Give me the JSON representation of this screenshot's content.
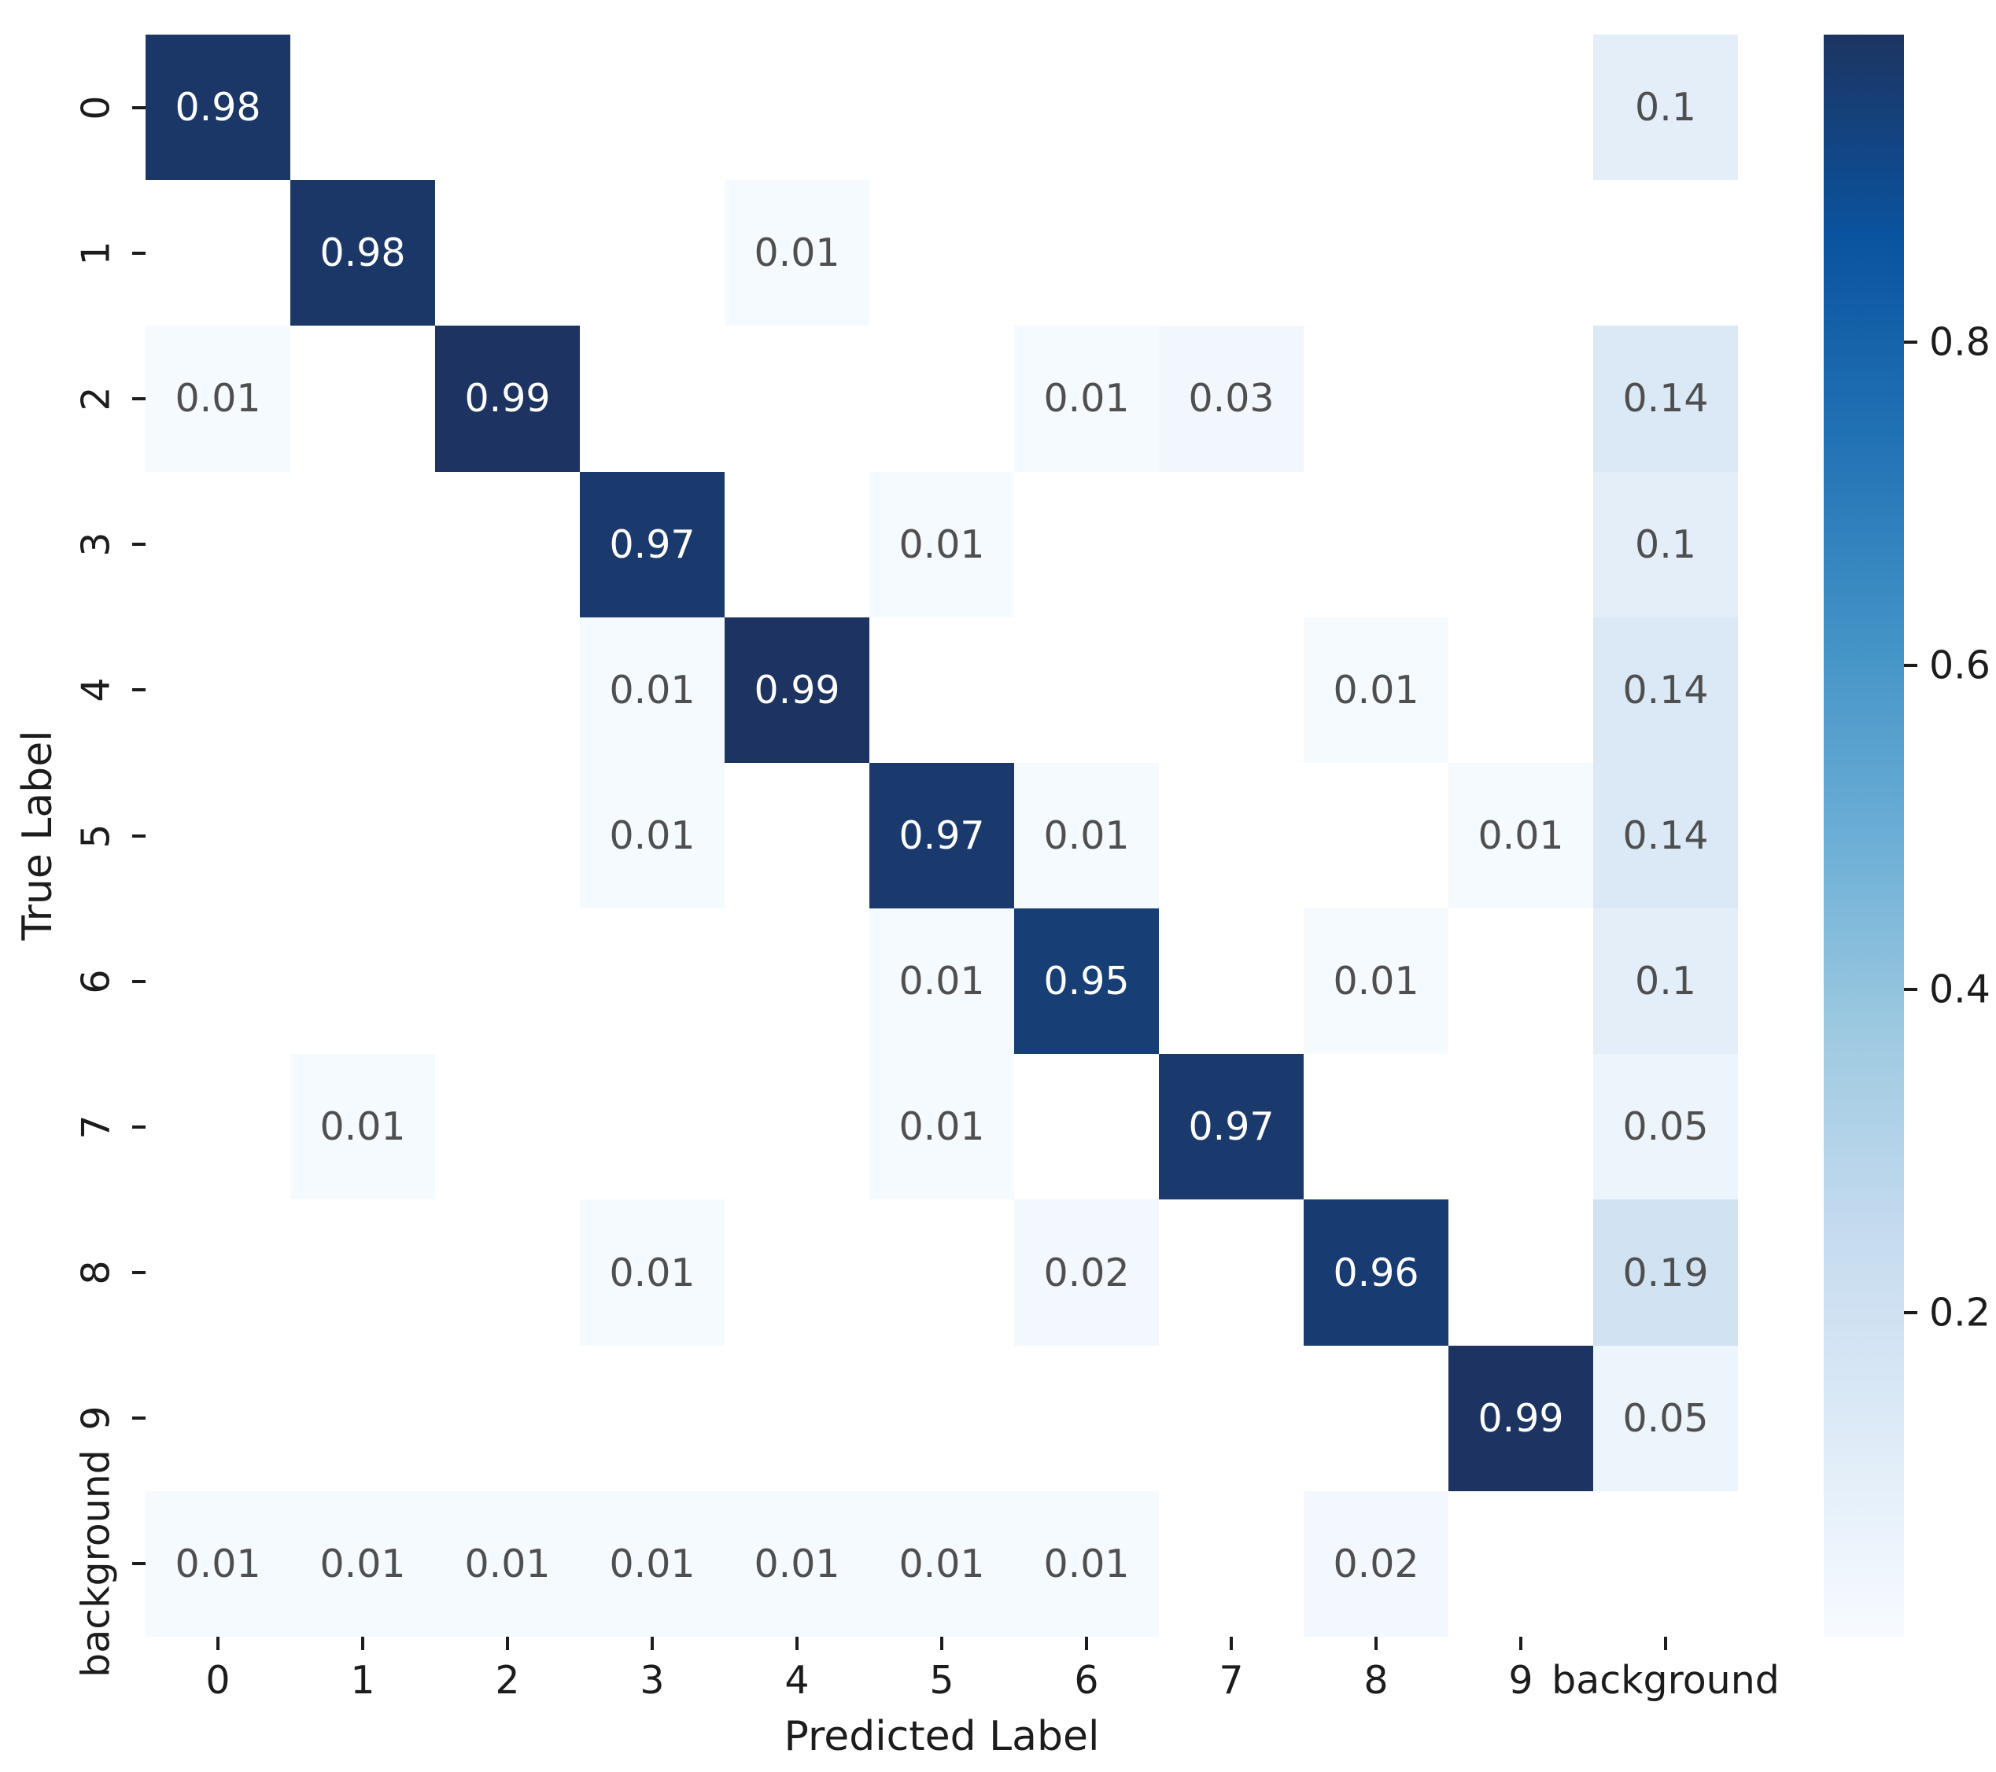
{
  "chart_data": {
    "type": "heatmap",
    "title": "",
    "xlabel": "Predicted Label",
    "ylabel": "True Label",
    "x_categories": [
      "0",
      "1",
      "2",
      "3",
      "4",
      "5",
      "6",
      "7",
      "8",
      "9",
      "background"
    ],
    "y_categories": [
      "0",
      "1",
      "2",
      "3",
      "4",
      "5",
      "6",
      "7",
      "8",
      "9",
      "background"
    ],
    "matrix": [
      [
        0.98,
        null,
        null,
        null,
        null,
        null,
        null,
        null,
        null,
        null,
        0.1
      ],
      [
        null,
        0.98,
        null,
        null,
        0.01,
        null,
        null,
        null,
        null,
        null,
        null
      ],
      [
        0.01,
        null,
        0.99,
        null,
        null,
        null,
        0.01,
        0.03,
        null,
        null,
        0.14
      ],
      [
        null,
        null,
        null,
        0.97,
        null,
        0.01,
        null,
        null,
        null,
        null,
        0.1
      ],
      [
        null,
        null,
        null,
        0.01,
        0.99,
        null,
        null,
        null,
        0.01,
        null,
        0.14
      ],
      [
        null,
        null,
        null,
        0.01,
        null,
        0.97,
        0.01,
        null,
        null,
        0.01,
        0.14
      ],
      [
        null,
        null,
        null,
        null,
        null,
        0.01,
        0.95,
        null,
        0.01,
        null,
        0.1
      ],
      [
        null,
        0.01,
        null,
        null,
        null,
        0.01,
        null,
        0.97,
        null,
        null,
        0.05
      ],
      [
        null,
        null,
        null,
        0.01,
        null,
        null,
        0.02,
        null,
        0.96,
        null,
        0.19
      ],
      [
        null,
        null,
        null,
        null,
        null,
        null,
        null,
        null,
        null,
        0.99,
        0.05
      ],
      [
        0.01,
        0.01,
        0.01,
        0.01,
        0.01,
        0.01,
        0.01,
        null,
        0.02,
        null,
        null
      ]
    ],
    "vmin": 0,
    "vmax": 0.99,
    "colormap": "Blues",
    "colorbar_ticks": [
      0.2,
      0.4,
      0.6,
      0.8
    ],
    "colorbar_position": "right",
    "grid": false,
    "colors": {
      "cmap_stops": [
        "#f7fbff",
        "#deebf7",
        "#c6dbef",
        "#9ecae1",
        "#6baed6",
        "#4292c6",
        "#2171b5",
        "#0a539e",
        "#1d3462"
      ],
      "empty_cell": "#ffffff",
      "annot_on_light": "#4f4f4f",
      "annot_on_dark": "#ffffff",
      "tick_color": "#1c1c1c"
    }
  }
}
